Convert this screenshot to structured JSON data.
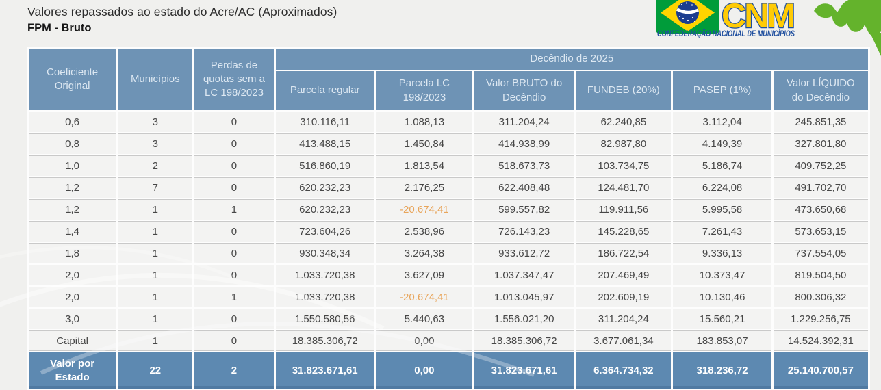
{
  "page": {
    "title": "Valores repassados ao estado do Acre/AC (Aproximados)",
    "subtitle": "FPM - Bruto"
  },
  "logo": {
    "acronym": "CNM",
    "tagline": "CONFEDERAÇÃO NACIONAL DE MUNICÍPIOS",
    "colors": {
      "flag_green": "#009c3a",
      "flag_yellow": "#ffd400",
      "flag_blue": "#1c3d8f",
      "cnm_yellow": "#ffcb05",
      "cnm_blue": "#1e4e9e",
      "map_green": "#64b32c"
    }
  },
  "table": {
    "header": {
      "col_coeficiente": "Coeficiente Original",
      "col_municipios": "Municípios",
      "col_perdas": "Perdas de quotas sem a LC 198/2023",
      "group_decendio": "Decêndio de 2025",
      "sub_cols": [
        "Parcela regular",
        "Parcela LC 198/2023",
        "Valor BRUTO do Decêndio",
        "FUNDEB (20%)",
        "PASEP (1%)",
        "Valor LÍQUIDO do Decêndio"
      ]
    },
    "rows": [
      [
        "0,6",
        "3",
        "0",
        "310.116,11",
        "1.088,13",
        "311.204,24",
        "62.240,85",
        "3.112,04",
        "245.851,35"
      ],
      [
        "0,8",
        "3",
        "0",
        "413.488,15",
        "1.450,84",
        "414.938,99",
        "82.987,80",
        "4.149,39",
        "327.801,80"
      ],
      [
        "1,0",
        "2",
        "0",
        "516.860,19",
        "1.813,54",
        "518.673,73",
        "103.734,75",
        "5.186,74",
        "409.752,25"
      ],
      [
        "1,2",
        "7",
        "0",
        "620.232,23",
        "2.176,25",
        "622.408,48",
        "124.481,70",
        "6.224,08",
        "491.702,70"
      ],
      [
        "1,2",
        "1",
        "1",
        "620.232,23",
        "-20.674,41",
        "599.557,82",
        "119.911,56",
        "5.995,58",
        "473.650,68"
      ],
      [
        "1,4",
        "1",
        "0",
        "723.604,26",
        "2.538,96",
        "726.143,23",
        "145.228,65",
        "7.261,43",
        "573.653,15"
      ],
      [
        "1,8",
        "1",
        "0",
        "930.348,34",
        "3.264,38",
        "933.612,72",
        "186.722,54",
        "9.336,13",
        "737.554,05"
      ],
      [
        "2,0",
        "1",
        "0",
        "1.033.720,38",
        "3.627,09",
        "1.037.347,47",
        "207.469,49",
        "10.373,47",
        "819.504,50"
      ],
      [
        "2,0",
        "1",
        "1",
        "1.033.720,38",
        "-20.674,41",
        "1.013.045,97",
        "202.609,19",
        "10.130,46",
        "800.306,32"
      ],
      [
        "3,0",
        "1",
        "0",
        "1.550.580,56",
        "5.440,63",
        "1.556.021,20",
        "311.204,24",
        "15.560,21",
        "1.229.256,75"
      ],
      [
        "Capital",
        "1",
        "0",
        "18.385.306,72",
        "0,00",
        "18.385.306,72",
        "3.677.061,34",
        "183.853,07",
        "14.524.392,31"
      ]
    ],
    "footer": {
      "label": "Valor por Estado",
      "values": [
        "22",
        "2",
        "31.823.671,61",
        "0,00",
        "31.823.671,61",
        "6.364.734,32",
        "318.236,72",
        "25.140.700,57"
      ]
    },
    "colors": {
      "header_bg": "#6e93b5",
      "footer_bg": "#5d89b1",
      "row_bg": "#f3f3f2",
      "negative_text": "#e8a55b",
      "grid_line": "#c9c9c9"
    }
  }
}
